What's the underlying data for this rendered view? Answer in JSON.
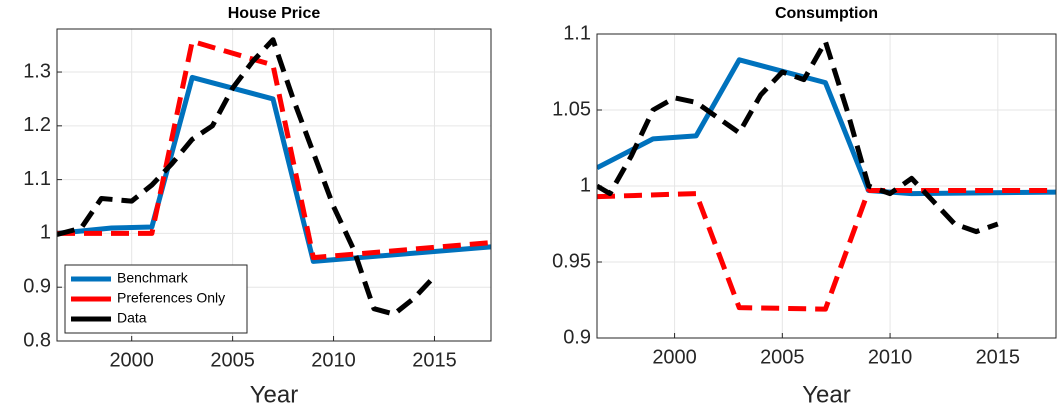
{
  "chart_data": [
    {
      "type": "line",
      "title": "House Price",
      "xlabel": "Year",
      "xlim": [
        1996.3,
        2017.8
      ],
      "ylim": [
        0.8,
        1.38
      ],
      "xticks": [
        2000,
        2005,
        2010,
        2015
      ],
      "yticks": [
        0.8,
        0.9,
        1,
        1.1,
        1.2,
        1.3
      ],
      "grid": true,
      "legend": "lower left",
      "series": [
        {
          "name": "Benchmark",
          "color": "#0072bd",
          "style": "solid",
          "x": [
            1996.3,
            1999,
            2001,
            2003,
            2007,
            2009,
            2017.8
          ],
          "values": [
            1.0,
            1.01,
            1.012,
            1.29,
            1.25,
            0.948,
            0.975
          ]
        },
        {
          "name": "Preferences Only",
          "color": "#ff0000",
          "style": "dashed",
          "x": [
            1996.3,
            2001,
            2003,
            2007,
            2009,
            2017.8
          ],
          "values": [
            1.0,
            1.0,
            1.357,
            1.313,
            0.955,
            0.983
          ]
        },
        {
          "name": "Data",
          "color": "#000000",
          "style": "dashed",
          "x": [
            1996.3,
            1997.5,
            1998.5,
            2000,
            2001,
            2002,
            2003,
            2004,
            2005,
            2006,
            2007,
            2008,
            2009,
            2010,
            2011,
            2012,
            2013,
            2014,
            2015
          ],
          "values": [
            0.998,
            1.01,
            1.065,
            1.06,
            1.09,
            1.13,
            1.175,
            1.2,
            1.27,
            1.32,
            1.36,
            1.25,
            1.15,
            1.05,
            0.97,
            0.86,
            0.85,
            0.88,
            0.92
          ]
        }
      ]
    },
    {
      "type": "line",
      "title": "Consumption",
      "xlabel": "Year",
      "xlim": [
        1996.4,
        2017.7
      ],
      "ylim": [
        0.9,
        1.1
      ],
      "xticks": [
        2000,
        2005,
        2010,
        2015
      ],
      "yticks": [
        0.9,
        0.95,
        1,
        1.05,
        1.1
      ],
      "grid": true,
      "legend": false,
      "series": [
        {
          "color": "#0072bd",
          "style": "solid",
          "x": [
            1996.4,
            1999,
            2001,
            2003,
            2007,
            2009,
            2011,
            2017.7
          ],
          "values": [
            1.012,
            1.031,
            1.033,
            1.083,
            1.068,
            0.997,
            0.995,
            0.996
          ]
        },
        {
          "color": "#ff0000",
          "style": "dashed",
          "x": [
            1996.4,
            2001,
            2003,
            2007,
            2009,
            2017.7
          ],
          "values": [
            0.993,
            0.995,
            0.92,
            0.919,
            0.997,
            0.997
          ]
        },
        {
          "color": "#000000",
          "style": "dashed",
          "x": [
            1996.4,
            1997,
            1998,
            1999,
            2000,
            2001,
            2002,
            2003,
            2004,
            2005,
            2006,
            2007,
            2008,
            2009,
            2010,
            2011,
            2012,
            2013,
            2014,
            2015
          ],
          "values": [
            1.0,
            0.995,
            1.02,
            1.05,
            1.058,
            1.055,
            1.045,
            1.035,
            1.06,
            1.075,
            1.07,
            1.095,
            1.05,
            1.0,
            0.995,
            1.005,
            0.99,
            0.975,
            0.97,
            0.975
          ]
        }
      ]
    }
  ]
}
